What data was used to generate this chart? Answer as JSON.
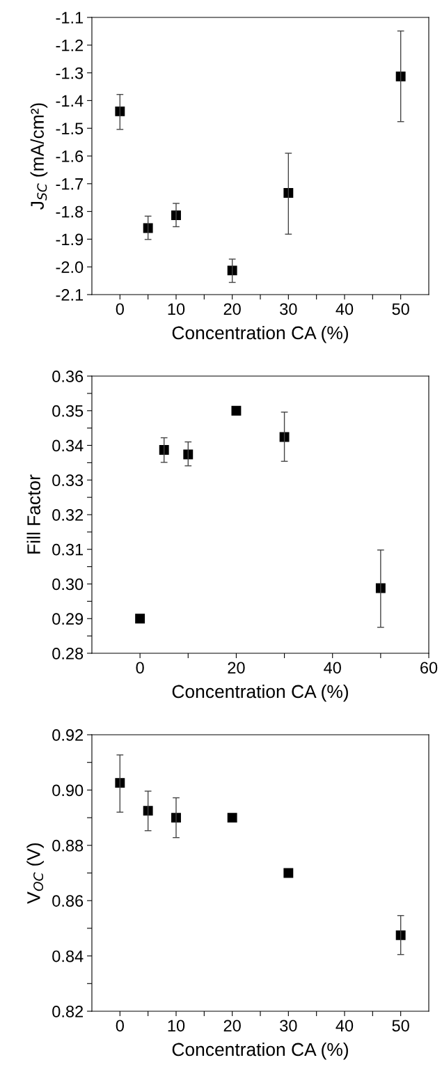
{
  "chart_data": [
    {
      "type": "scatter",
      "xlabel": "Concentration CA (%)",
      "ylabel": "J$_{SC}$ (mA/cm²)",
      "marker": "square",
      "grid": false,
      "legend": false,
      "x": [
        0,
        5,
        10,
        20,
        30,
        50
      ],
      "series": [
        {
          "color": "#000000",
          "values": [
            -1.439,
            -1.86,
            -1.814,
            -2.013,
            -1.733,
            -1.313
          ],
          "errors": [
            [
              -1.504,
              -1.378
            ],
            [
              -1.901,
              -1.817
            ],
            [
              -1.855,
              -1.771
            ],
            [
              -2.056,
              -1.972
            ],
            [
              -1.882,
              -1.59
            ],
            [
              -1.476,
              -1.149
            ]
          ]
        }
      ],
      "xlim": [
        -5,
        55
      ],
      "xticks": [
        0,
        {
          "value": 5,
          "label": null
        },
        10,
        {
          "value": 15,
          "label": null
        },
        20,
        {
          "value": 25,
          "label": null
        },
        30,
        {
          "value": 35,
          "label": null
        },
        40,
        {
          "value": 45,
          "label": null
        },
        50
      ],
      "ylim": [
        -2.1,
        -1.1
      ],
      "yticks": [
        {
          "value": -2.1,
          "label": "-2.1"
        },
        {
          "value": -2.0,
          "label": "-2.0"
        },
        {
          "value": -1.9,
          "label": "-1.9"
        },
        {
          "value": -1.8,
          "label": "-1.8"
        },
        {
          "value": -1.7,
          "label": "-1.7"
        },
        {
          "value": -1.6,
          "label": "-1.6"
        },
        {
          "value": -1.5,
          "label": "-1.5"
        },
        {
          "value": -1.4,
          "label": "-1.4"
        },
        {
          "value": -1.3,
          "label": "-1.3"
        },
        {
          "value": -1.2,
          "label": "-1.2"
        },
        {
          "value": -1.1,
          "label": "-1.1"
        }
      ]
    },
    {
      "type": "scatter",
      "xlabel": "Concentration CA (%)",
      "ylabel": "Fill Factor",
      "marker": "square",
      "grid": false,
      "legend": false,
      "x": [
        0,
        5,
        10,
        20,
        30,
        50
      ],
      "series": [
        {
          "color": "#000000",
          "values": [
            0.29,
            0.3387,
            0.3374,
            0.35,
            0.3424,
            0.2988
          ],
          "errors": [
            null,
            [
              0.3351,
              0.3422
            ],
            [
              0.3341,
              0.341
            ],
            null,
            [
              0.3354,
              0.3496
            ],
            [
              0.2875,
              0.3098
            ]
          ]
        }
      ],
      "xlim": [
        -10,
        60
      ],
      "xticks": [
        0,
        {
          "value": 10,
          "label": null
        },
        20,
        {
          "value": 30,
          "label": null
        },
        40,
        {
          "value": 50,
          "label": null
        },
        60
      ],
      "ylim": [
        0.28,
        0.36
      ],
      "yticks": [
        {
          "value": 0.28,
          "label": "0.28"
        },
        {
          "value": 0.285,
          "label": null
        },
        {
          "value": 0.29,
          "label": "0.29"
        },
        {
          "value": 0.295,
          "label": null
        },
        {
          "value": 0.3,
          "label": "0.30"
        },
        {
          "value": 0.305,
          "label": null
        },
        {
          "value": 0.31,
          "label": "0.31"
        },
        {
          "value": 0.315,
          "label": null
        },
        {
          "value": 0.32,
          "label": "0.32"
        },
        {
          "value": 0.325,
          "label": null
        },
        {
          "value": 0.33,
          "label": "0.33"
        },
        {
          "value": 0.335,
          "label": null
        },
        {
          "value": 0.34,
          "label": "0.34"
        },
        {
          "value": 0.345,
          "label": null
        },
        {
          "value": 0.35,
          "label": "0.35"
        },
        {
          "value": 0.355,
          "label": null
        },
        {
          "value": 0.36,
          "label": "0.36"
        }
      ]
    },
    {
      "type": "scatter",
      "xlabel": "Concentration CA (%)",
      "ylabel": "V$_{OC}$ (V)",
      "marker": "square",
      "grid": false,
      "legend": false,
      "x": [
        0,
        5,
        10,
        20,
        30,
        50
      ],
      "series": [
        {
          "color": "#000000",
          "values": [
            0.9026,
            0.8925,
            0.89,
            0.89,
            0.87,
            0.8475
          ],
          "errors": [
            [
              0.892,
              0.9127
            ],
            [
              0.8853,
              0.8996
            ],
            [
              0.8828,
              0.8972
            ],
            null,
            null,
            [
              0.8405,
              0.8546
            ]
          ]
        }
      ],
      "xlim": [
        -5,
        55
      ],
      "xticks": [
        0,
        {
          "value": 5,
          "label": null
        },
        10,
        {
          "value": 15,
          "label": null
        },
        20,
        {
          "value": 25,
          "label": null
        },
        30,
        {
          "value": 35,
          "label": null
        },
        40,
        {
          "value": 45,
          "label": null
        },
        50
      ],
      "ylim": [
        0.82,
        0.92
      ],
      "yticks": [
        {
          "value": 0.82,
          "label": "0.82"
        },
        {
          "value": 0.83,
          "label": null
        },
        {
          "value": 0.84,
          "label": "0.84"
        },
        {
          "value": 0.85,
          "label": null
        },
        {
          "value": 0.86,
          "label": "0.86"
        },
        {
          "value": 0.87,
          "label": null
        },
        {
          "value": 0.88,
          "label": "0.88"
        },
        {
          "value": 0.89,
          "label": null
        },
        {
          "value": 0.9,
          "label": "0.90"
        },
        {
          "value": 0.91,
          "label": null
        },
        {
          "value": 0.92,
          "label": "0.92"
        }
      ]
    }
  ]
}
